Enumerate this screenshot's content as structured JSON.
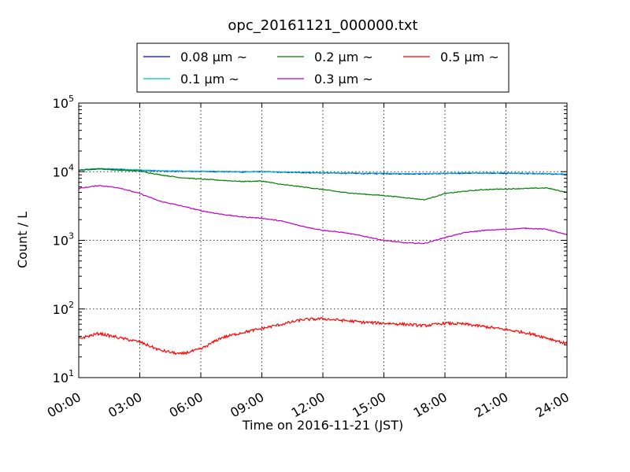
{
  "chart_data": {
    "type": "line",
    "title": "opc_20161121_000000.txt",
    "xlabel": "Time on 2016-11-21 (JST)",
    "ylabel": "Count / L",
    "xlim": [
      "2016-11-21 00:00",
      "2016-11-22 00:00"
    ],
    "ylim": [
      10,
      100000
    ],
    "yscale": "log",
    "grid": true,
    "legend_position": "top-center",
    "x_tick_labels": [
      "00:00",
      "03:00",
      "06:00",
      "09:00",
      "12:00",
      "15:00",
      "18:00",
      "21:00",
      "24:00"
    ],
    "y_tick_labels": [
      {
        "base": "10",
        "exp": "1"
      },
      {
        "base": "10",
        "exp": "2"
      },
      {
        "base": "10",
        "exp": "3"
      },
      {
        "base": "10",
        "exp": "4"
      },
      {
        "base": "10",
        "exp": "5"
      }
    ],
    "x": [
      "2016-11-21 00:00",
      "2016-11-21 01:00",
      "2016-11-21 02:00",
      "2016-11-21 03:00",
      "2016-11-21 04:00",
      "2016-11-21 05:00",
      "2016-11-21 06:00",
      "2016-11-21 07:00",
      "2016-11-21 08:00",
      "2016-11-21 09:00",
      "2016-11-21 10:00",
      "2016-11-21 11:00",
      "2016-11-21 12:00",
      "2016-11-21 13:00",
      "2016-11-21 14:00",
      "2016-11-21 15:00",
      "2016-11-21 16:00",
      "2016-11-21 17:00",
      "2016-11-21 18:00",
      "2016-11-21 19:00",
      "2016-11-21 20:00",
      "2016-11-21 21:00",
      "2016-11-21 22:00",
      "2016-11-21 23:00",
      "2016-11-22 00:00"
    ],
    "series": [
      {
        "name": "0.08 μm ~",
        "color": "#0000ff",
        "values": [
          10500,
          11000,
          10800,
          10500,
          10200,
          10100,
          10100,
          10000,
          9900,
          10000,
          9800,
          9700,
          9600,
          9500,
          9400,
          9400,
          9300,
          9300,
          9400,
          9500,
          9500,
          9500,
          9400,
          9300,
          9100
        ]
      },
      {
        "name": "0.1 μm ~",
        "color": "#00bfbf",
        "values": [
          10600,
          11100,
          10900,
          10600,
          10300,
          10200,
          10200,
          10100,
          10000,
          10100,
          9900,
          9800,
          9700,
          9600,
          9500,
          9500,
          9400,
          9400,
          9500,
          9600,
          9600,
          9600,
          9500,
          9400,
          9200
        ]
      },
      {
        "name": "0.2 μm ~",
        "color": "#008000",
        "values": [
          10500,
          11000,
          10500,
          10200,
          9000,
          8200,
          7800,
          7500,
          7200,
          7300,
          6500,
          6000,
          5500,
          5000,
          4700,
          4500,
          4200,
          3900,
          4800,
          5200,
          5500,
          5600,
          5700,
          5800,
          5000
        ]
      },
      {
        "name": "0.3 μm ~",
        "color": "#bf00bf",
        "values": [
          5700,
          6300,
          5800,
          4800,
          3700,
          3200,
          2700,
          2400,
          2200,
          2100,
          1900,
          1600,
          1400,
          1300,
          1150,
          1000,
          920,
          900,
          1100,
          1300,
          1400,
          1450,
          1500,
          1450,
          1200
        ]
      },
      {
        "name": "0.5 μm ~",
        "color": "#ff0000",
        "values": [
          37,
          44,
          38,
          33,
          25,
          22,
          26,
          38,
          45,
          52,
          60,
          70,
          72,
          68,
          64,
          62,
          60,
          57,
          62,
          60,
          55,
          50,
          45,
          38,
          31
        ]
      }
    ]
  }
}
